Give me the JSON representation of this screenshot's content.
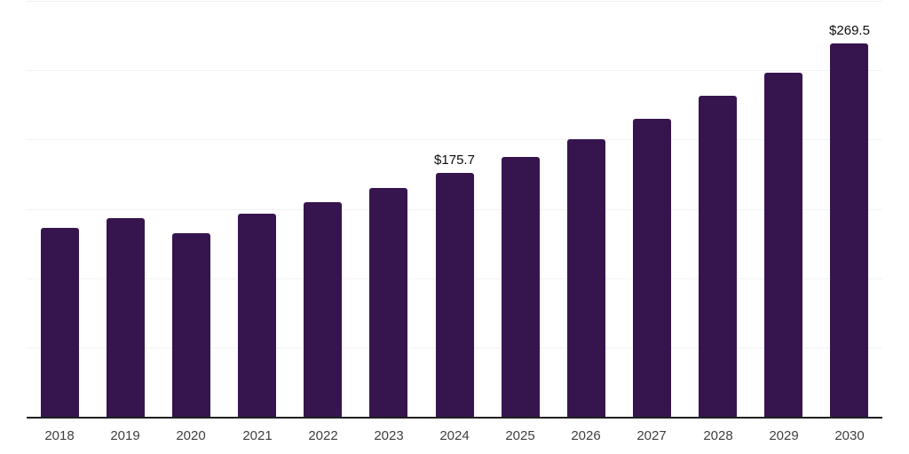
{
  "chart_data": {
    "type": "bar",
    "title": "",
    "xlabel": "",
    "ylabel": "",
    "categories": [
      "2018",
      "2019",
      "2020",
      "2021",
      "2022",
      "2023",
      "2024",
      "2025",
      "2026",
      "2027",
      "2028",
      "2029",
      "2030"
    ],
    "values": [
      136.2,
      143.2,
      132.4,
      146.6,
      154.7,
      164.9,
      175.7,
      187.2,
      200.2,
      215.0,
      231.3,
      248.5,
      269.5
    ],
    "bar_value_labels": [
      "",
      "",
      "",
      "",
      "",
      "",
      "$175.7",
      "",
      "",
      "",
      "",
      "",
      "$269.5"
    ],
    "ylim": [
      0,
      300
    ],
    "grid": {
      "horizontal": true,
      "step": 50,
      "y_tick_labels_visible": false
    },
    "legend": "none",
    "colors": {
      "bar": "#36154e",
      "gridline": "#f2f2f2",
      "axis": "#1f1f1f",
      "tick_label": "#404040",
      "value_label": "#0d0d0d",
      "background": "#ffffff"
    }
  }
}
